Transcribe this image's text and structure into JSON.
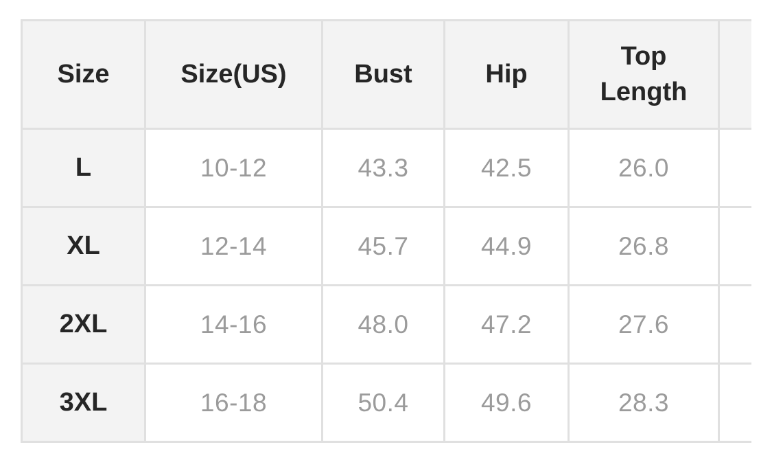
{
  "page": {
    "background_color": "#ffffff"
  },
  "size_chart": {
    "columns": [
      {
        "id": "size",
        "label": "Size"
      },
      {
        "id": "size_us",
        "label": "Size(US)"
      },
      {
        "id": "bust",
        "label": "Bust"
      },
      {
        "id": "hip",
        "label": "Hip"
      },
      {
        "id": "top_length",
        "label": "Top Length"
      },
      {
        "id": "clipped",
        "label": ""
      }
    ],
    "rows": [
      {
        "size": "L",
        "size_us": "10-12",
        "bust": "43.3",
        "hip": "42.5",
        "top_length": "26.0",
        "clipped": ""
      },
      {
        "size": "XL",
        "size_us": "12-14",
        "bust": "45.7",
        "hip": "44.9",
        "top_length": "26.8",
        "clipped": ""
      },
      {
        "size": "2XL",
        "size_us": "14-16",
        "bust": "48.0",
        "hip": "47.2",
        "top_length": "27.6",
        "clipped": ""
      },
      {
        "size": "3XL",
        "size_us": "16-18",
        "bust": "50.4",
        "hip": "49.6",
        "top_length": "28.3",
        "clipped": ""
      }
    ],
    "colors": {
      "header_background": "#f3f3f3",
      "row_label_background": "#f3f3f3",
      "cell_background": "#ffffff",
      "border": "#e0e0e0",
      "header_text": "#262626",
      "value_text": "#9b9b9b"
    }
  }
}
